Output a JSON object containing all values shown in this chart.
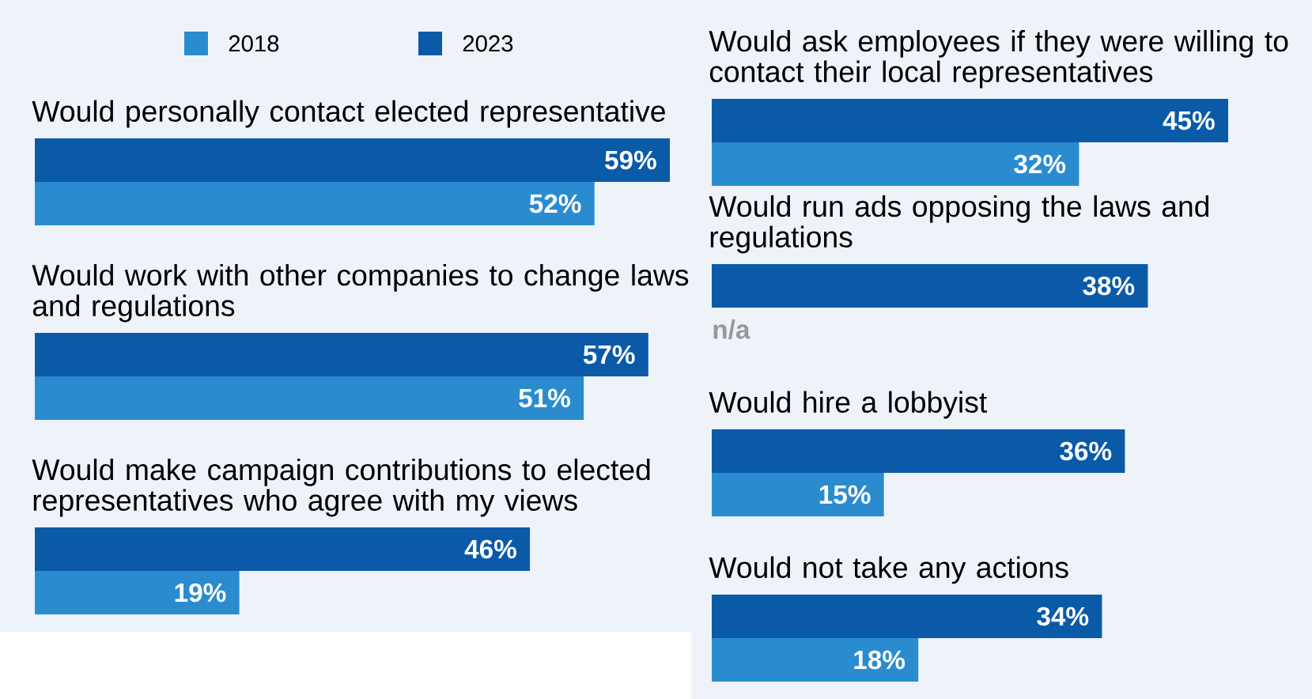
{
  "chart_data": [
    {
      "type": "bar",
      "orientation": "horizontal",
      "legend": "top",
      "categories": [
        "Would personally contact elected representative",
        "Would work with other companies to change laws and regulations",
        "Would make campaign contributions to elected representatives who agree with my views"
      ],
      "series": [
        {
          "name": "2018",
          "color": "#2a8ccf",
          "values": [
            52,
            51,
            19
          ],
          "value_labels": [
            "52%",
            "51%",
            "19%"
          ]
        },
        {
          "name": "2023",
          "color": "#0a5aa8",
          "values": [
            59,
            57,
            46
          ],
          "value_labels": [
            "59%",
            "57%",
            "46%"
          ]
        }
      ]
    },
    {
      "type": "bar",
      "orientation": "horizontal",
      "categories": [
        "Would ask employees if they were willing to contact their local representatives",
        "Would run ads opposing the laws and regulations",
        "Would hire a lobbyist",
        "Would not take any actions"
      ],
      "series": [
        {
          "color": "#2a8ccf",
          "values": [
            32,
            null,
            15,
            18
          ],
          "value_labels": [
            "32%",
            "n/a",
            "15%",
            "18%"
          ]
        },
        {
          "color": "#0a5aa8",
          "values": [
            45,
            38,
            36,
            34
          ],
          "value_labels": [
            "45%",
            "38%",
            "36%",
            "34%"
          ]
        }
      ]
    }
  ]
}
